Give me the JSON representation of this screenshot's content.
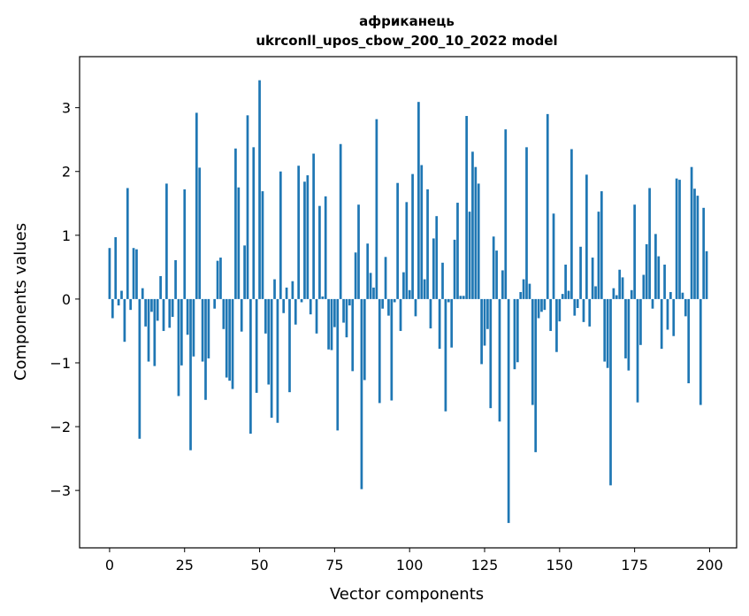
{
  "chart_data": {
    "type": "bar",
    "title": "африканець",
    "subtitle": "ukrconll_upos_cbow_200_10_2022 model",
    "xlabel": "Vector components",
    "ylabel": "Components values",
    "xlim": [
      -10,
      209
    ],
    "ylim": [
      -3.9,
      3.8
    ],
    "xticks": [
      0,
      25,
      50,
      75,
      100,
      125,
      150,
      175,
      200
    ],
    "yticks": [
      -3,
      -2,
      -1,
      0,
      1,
      2,
      3
    ],
    "ytick_labels": [
      "−3",
      "−2",
      "−1",
      "0",
      "1",
      "2",
      "3"
    ],
    "grid": false,
    "color": "#1f77b4",
    "values": [
      0.8,
      -0.3,
      0.97,
      -0.1,
      0.13,
      -0.67,
      1.74,
      -0.17,
      0.8,
      0.78,
      -2.19,
      0.17,
      -0.43,
      -0.98,
      -0.2,
      -1.05,
      -0.34,
      0.36,
      -0.5,
      1.81,
      -0.45,
      -0.28,
      0.61,
      -1.52,
      -1.04,
      1.72,
      -0.56,
      -2.37,
      -0.9,
      2.92,
      2.06,
      -0.98,
      -1.58,
      -0.93,
      0.0,
      -0.15,
      0.6,
      0.65,
      -0.47,
      -1.23,
      -1.28,
      -1.41,
      2.36,
      1.75,
      -0.51,
      0.84,
      2.88,
      -2.11,
      2.38,
      -1.47,
      3.43,
      1.69,
      -0.54,
      -1.34,
      -1.86,
      0.31,
      -1.94,
      2.0,
      -0.22,
      0.18,
      -1.46,
      0.28,
      -0.4,
      2.09,
      -0.05,
      1.84,
      1.94,
      -0.24,
      2.28,
      -0.54,
      1.46,
      0.04,
      1.61,
      -0.79,
      -0.8,
      -0.44,
      -2.06,
      2.43,
      -0.37,
      -0.6,
      -0.1,
      -1.13,
      0.73,
      1.48,
      -2.98,
      -1.27,
      0.87,
      0.41,
      0.18,
      2.82,
      -1.63,
      -0.15,
      0.66,
      -0.26,
      -1.59,
      -0.05,
      1.82,
      -0.5,
      0.42,
      1.52,
      0.14,
      1.96,
      -0.27,
      3.09,
      2.1,
      0.31,
      1.72,
      -0.46,
      0.95,
      1.3,
      -0.78,
      0.57,
      -1.76,
      -0.05,
      -0.76,
      0.93,
      1.51,
      0.05,
      0.05,
      2.87,
      1.37,
      2.31,
      2.07,
      1.81,
      -1.02,
      -0.73,
      -0.47,
      -1.71,
      0.98,
      0.76,
      -1.92,
      0.45,
      2.66,
      -3.51,
      0.0,
      -1.1,
      -0.99,
      0.11,
      0.31,
      2.38,
      0.24,
      -1.66,
      -2.4,
      -0.3,
      -0.2,
      -0.17,
      2.9,
      -0.5,
      1.34,
      -0.83,
      -0.35,
      0.08,
      0.54,
      0.13,
      2.35,
      -0.26,
      -0.14,
      0.82,
      -0.36,
      1.95,
      -0.43,
      0.65,
      0.2,
      1.37,
      1.69,
      -0.98,
      -1.08,
      -2.92,
      0.17,
      0.06,
      0.46,
      0.34,
      -0.93,
      -1.12,
      0.14,
      1.48,
      -1.62,
      -0.72,
      0.38,
      0.86,
      1.74,
      -0.15,
      1.02,
      0.67,
      -0.78,
      0.54,
      -0.48,
      0.11,
      -0.58,
      1.89,
      1.87,
      0.1,
      -0.27,
      -1.32,
      2.07,
      1.73,
      1.62,
      -1.66,
      1.43,
      0.75
    ]
  }
}
